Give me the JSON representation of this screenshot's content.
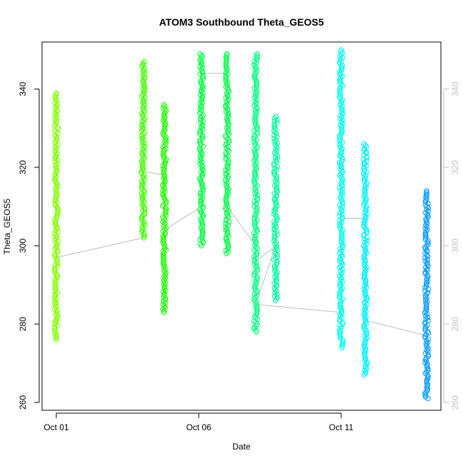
{
  "chart_data": {
    "type": "scatter",
    "title": "ATOM3 Southbound Theta_GEOS5",
    "xlabel": "Date",
    "ylabel": "Theta_GEOS5",
    "x_unit": "day of October",
    "xlim": [
      0.5,
      14.5
    ],
    "ylim": [
      258,
      352
    ],
    "x_ticks": [
      1,
      6,
      11
    ],
    "x_tick_labels": [
      "Oct 01",
      "Oct 06",
      "Oct 11"
    ],
    "y_ticks": [
      260,
      280,
      300,
      320,
      340
    ],
    "y_tick_labels": [
      "260",
      "280",
      "300",
      "320",
      "340"
    ],
    "right_axis": {
      "ticks": [
        260,
        280,
        300,
        320,
        340
      ],
      "tick_labels": [
        "260",
        "280",
        "300",
        "320",
        "340"
      ],
      "color": "#bfbfbf"
    },
    "grid": false,
    "marker": "open circle",
    "line_color": "#bdbdbd",
    "series": [
      {
        "x": 1.0,
        "ymin": 276,
        "ymax": 339,
        "color": "#80ff00"
      },
      {
        "x": 4.05,
        "ymin": 302,
        "ymax": 347,
        "color": "#40ff00"
      },
      {
        "x": 4.8,
        "ymin": 283,
        "ymax": 336,
        "color": "#20ff00"
      },
      {
        "x": 6.1,
        "ymin": 300,
        "ymax": 349,
        "color": "#00ff40"
      },
      {
        "x": 7.0,
        "ymin": 298,
        "ymax": 349,
        "color": "#00ff4a"
      },
      {
        "x": 8.0,
        "ymin": 278,
        "ymax": 349,
        "color": "#00ff80"
      },
      {
        "x": 8.7,
        "ymin": 286,
        "ymax": 333,
        "color": "#00ff9f"
      },
      {
        "x": 11.0,
        "ymin": 274,
        "ymax": 350,
        "color": "#00ffea"
      },
      {
        "x": 11.85,
        "ymin": 267,
        "ymax": 326,
        "color": "#00f0ff"
      },
      {
        "x": 14.0,
        "ymin": 261,
        "ymax": 314,
        "color": "#0099ff"
      }
    ],
    "connector_line": {
      "x": [
        1.0,
        4.05,
        4.05,
        4.8,
        4.8,
        6.1,
        6.1,
        7.0,
        7.0,
        8.0,
        8.0,
        8.7,
        8.7,
        8.0,
        8.0,
        11.0,
        11.0,
        11.85,
        11.85,
        14.0
      ],
      "y": [
        297,
        302,
        319,
        318,
        304,
        310,
        344,
        344,
        310,
        300,
        296,
        300,
        300,
        285,
        285,
        283,
        307,
        307,
        281,
        277
      ]
    }
  }
}
